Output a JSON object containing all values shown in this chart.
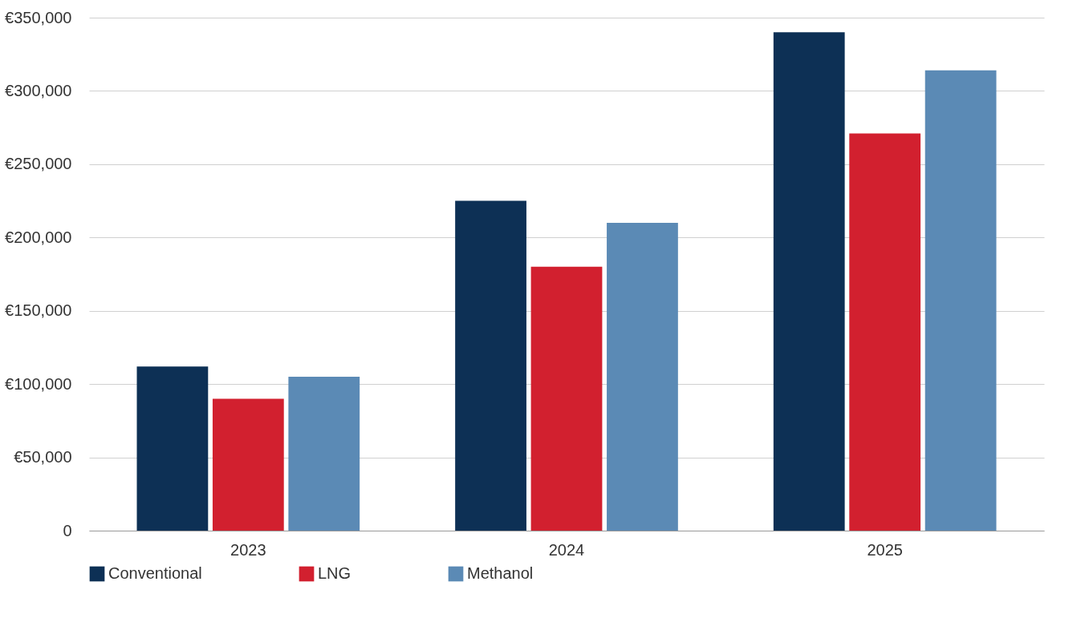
{
  "chart_data": {
    "type": "bar",
    "categories": [
      "2023",
      "2024",
      "2025"
    ],
    "series": [
      {
        "name": "Conventional",
        "color": "#0d3055",
        "values": [
          112000,
          225000,
          340000
        ]
      },
      {
        "name": "LNG",
        "color": "#d2202f",
        "values": [
          90000,
          180000,
          271000
        ]
      },
      {
        "name": "Methanol",
        "color": "#5b8ab5",
        "values": [
          105000,
          210000,
          314000
        ]
      }
    ],
    "ylim": [
      0,
      350000
    ],
    "yticks": [
      0,
      {
        "value": 50000,
        "label": "€50,000"
      },
      {
        "value": 100000,
        "label": "€100,000"
      },
      {
        "value": 150000,
        "label": "€150,000"
      },
      {
        "value": 200000,
        "label": "€200,000"
      },
      {
        "value": 250000,
        "label": "€250,000"
      },
      {
        "value": 300000,
        "label": "€300,000"
      },
      {
        "value": 350000,
        "label": "€350,000"
      }
    ],
    "grid": "y",
    "legend": "bottom"
  }
}
